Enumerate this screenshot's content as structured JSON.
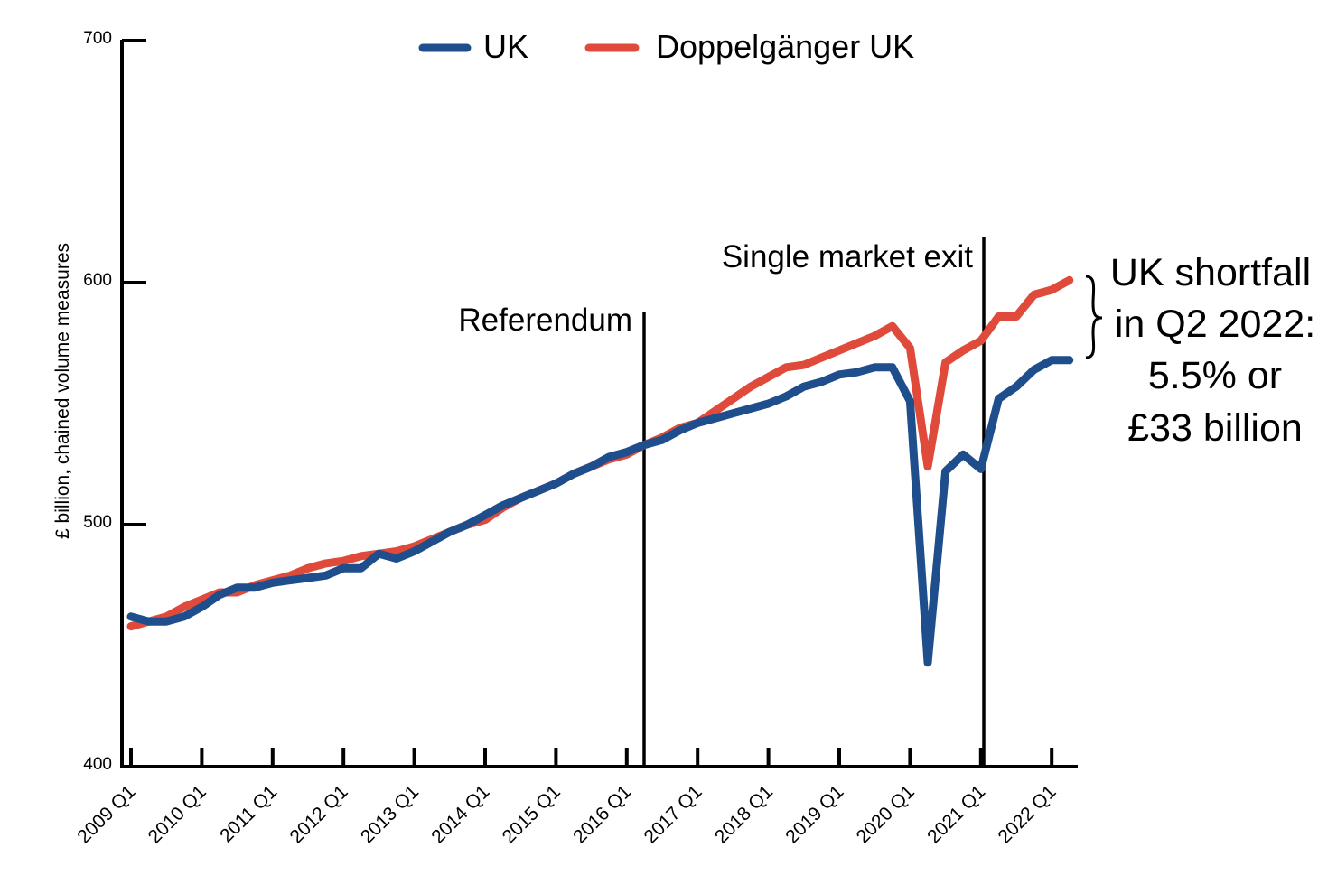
{
  "chart_data": {
    "type": "line",
    "title": "",
    "xlabel": "",
    "ylabel": "£ billion, chained volume measures",
    "ylim": [
      400,
      700
    ],
    "yticks": [
      400,
      500,
      600,
      700
    ],
    "xlim": [
      "2009 Q1",
      "2022 Q2"
    ],
    "x_tick_labels": [
      "2009 Q1",
      "2010 Q1",
      "2011 Q1",
      "2012 Q1",
      "2013 Q1",
      "2014 Q1",
      "2015 Q1",
      "2016 Q1",
      "2017 Q1",
      "2018 Q1",
      "2019 Q1",
      "2020 Q1",
      "2021 Q1",
      "2022 Q1"
    ],
    "x": [
      "2009 Q1",
      "2009 Q2",
      "2009 Q3",
      "2009 Q4",
      "2010 Q1",
      "2010 Q2",
      "2010 Q3",
      "2010 Q4",
      "2011 Q1",
      "2011 Q2",
      "2011 Q3",
      "2011 Q4",
      "2012 Q1",
      "2012 Q2",
      "2012 Q3",
      "2012 Q4",
      "2013 Q1",
      "2013 Q2",
      "2013 Q3",
      "2013 Q4",
      "2014 Q1",
      "2014 Q2",
      "2014 Q3",
      "2014 Q4",
      "2015 Q1",
      "2015 Q2",
      "2015 Q3",
      "2015 Q4",
      "2016 Q1",
      "2016 Q2",
      "2016 Q3",
      "2016 Q4",
      "2017 Q1",
      "2017 Q2",
      "2017 Q3",
      "2017 Q4",
      "2018 Q1",
      "2018 Q2",
      "2018 Q3",
      "2018 Q4",
      "2019 Q1",
      "2019 Q2",
      "2019 Q3",
      "2019 Q4",
      "2020 Q1",
      "2020 Q2",
      "2020 Q3",
      "2020 Q4",
      "2021 Q1",
      "2021 Q2",
      "2021 Q3",
      "2021 Q4",
      "2022 Q1",
      "2022 Q2"
    ],
    "series": [
      {
        "name": "UK",
        "color": "#1f4e8c",
        "values": [
          462,
          460,
          460,
          462,
          466,
          471,
          474,
          474,
          476,
          477,
          478,
          479,
          482,
          482,
          488,
          486,
          489,
          493,
          497,
          500,
          504,
          508,
          511,
          514,
          517,
          521,
          524,
          528,
          530,
          533,
          535,
          539,
          542,
          544,
          546,
          548,
          550,
          553,
          557,
          559,
          562,
          563,
          565,
          565,
          551,
          443,
          522,
          529,
          523,
          552,
          557,
          564,
          568,
          568
        ]
      },
      {
        "name": "Doppelgänger UK",
        "color": "#e04a3a",
        "values": [
          458,
          460,
          462,
          466,
          469,
          472,
          472,
          475,
          477,
          479,
          482,
          484,
          485,
          487,
          488,
          489,
          491,
          494,
          497,
          500,
          502,
          507,
          511,
          514,
          517,
          521,
          524,
          527,
          529,
          533,
          536,
          540,
          542,
          547,
          552,
          557,
          561,
          565,
          566,
          569,
          572,
          575,
          578,
          582,
          573,
          524,
          567,
          572,
          576,
          586,
          586,
          595,
          597,
          601
        ]
      }
    ],
    "legend": "top-center",
    "grid": false,
    "annotations": {
      "referendum": {
        "label": "Referendum",
        "at": "2016 Q3"
      },
      "single_market_exit": {
        "label": "Single market exit",
        "at": "2021 Q1"
      },
      "shortfall_lines": [
        "UK shortfall",
        "in Q2 2022:",
        "5.5% or",
        "£33 billion"
      ]
    }
  }
}
